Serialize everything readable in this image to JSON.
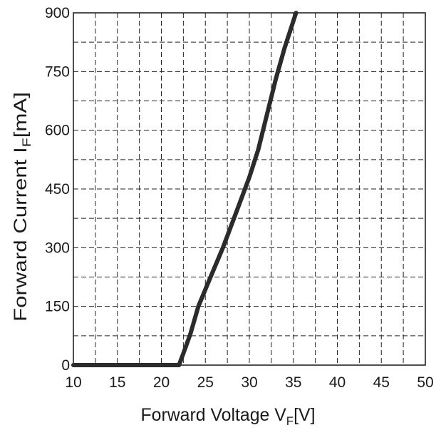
{
  "chart_data": {
    "type": "line",
    "title": "",
    "xlabel_main": "Forward Voltage V",
    "xlabel_sub": "F",
    "xlabel_unit": "[V]",
    "ylabel_main": "Forward Current I",
    "ylabel_sub": "F",
    "ylabel_unit": "[mA]",
    "xlim": [
      10,
      50
    ],
    "ylim": [
      0,
      900
    ],
    "x_ticks": [
      10,
      15,
      20,
      25,
      30,
      35,
      40,
      45,
      50
    ],
    "y_ticks": [
      0,
      150,
      300,
      450,
      600,
      750,
      900
    ],
    "x_tick_labels": [
      "10",
      "15",
      "20",
      "25",
      "30",
      "35",
      "40",
      "45",
      "50"
    ],
    "y_tick_labels": [
      "0",
      "150",
      "300",
      "450",
      "600",
      "750",
      "900"
    ],
    "x_grid_step": 2.5,
    "y_grid_step": 75,
    "grid": true,
    "line_color": "#2b2b2b",
    "series": [
      {
        "x": [
          10,
          22,
          22.5,
          23.3,
          24.2,
          25.5,
          27,
          28.5,
          30,
          31,
          32,
          33,
          34,
          35.3
        ],
        "y": [
          0,
          0,
          30,
          80,
          150,
          220,
          300,
          390,
          480,
          550,
          640,
          730,
          810,
          900
        ]
      }
    ]
  }
}
